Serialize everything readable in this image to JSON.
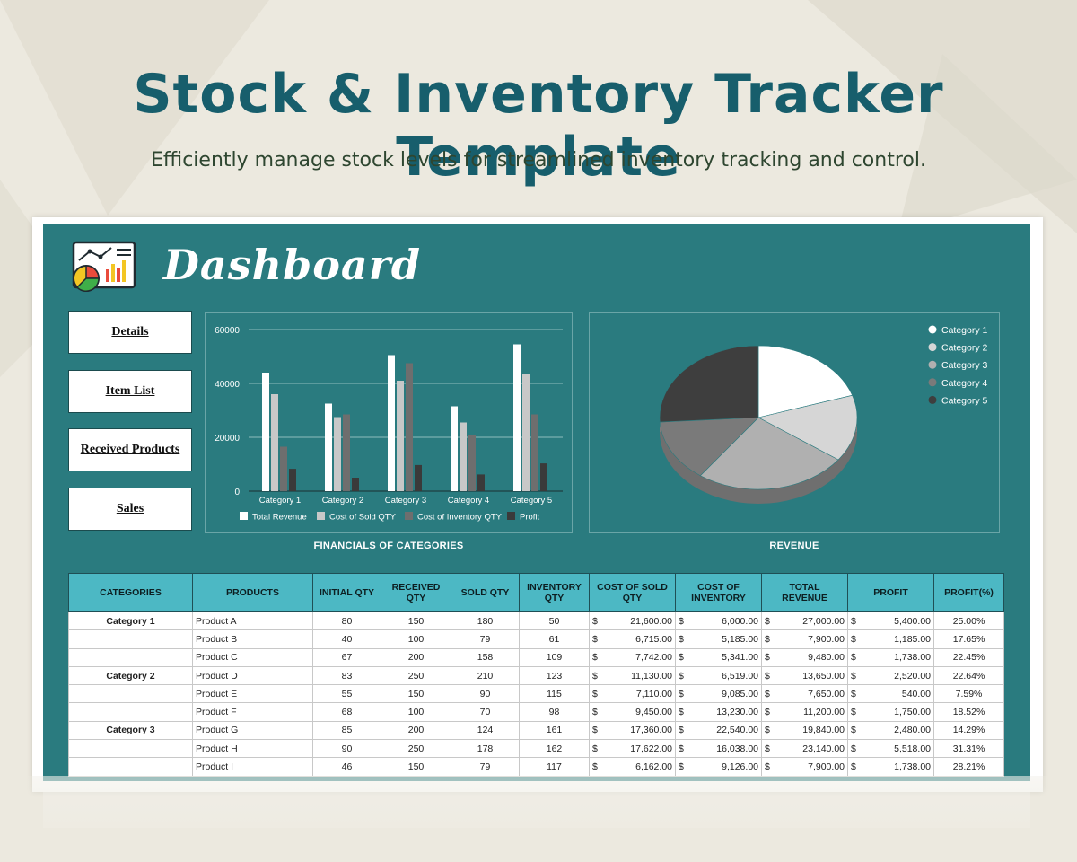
{
  "hero": {
    "title": "Stock & Inventory Tracker Template",
    "subtitle": "Efficiently manage stock levels for streamlined inventory tracking and control."
  },
  "dashboard": {
    "title": "Dashboard",
    "icon": "dashboard-chart-icon",
    "nav": [
      "Details",
      "Item List",
      "Received Products",
      "Sales"
    ]
  },
  "colors": {
    "teal_panel": "#2a7b7f",
    "header_cell": "#4cb8c4",
    "title_teal": "#175e6c"
  },
  "chart_data": [
    {
      "type": "bar",
      "title": "FINANCIALS OF CATEGORIES",
      "categories": [
        "Category 1",
        "Category 2",
        "Category 3",
        "Category 4",
        "Category 5"
      ],
      "series": [
        {
          "name": "Total Revenue",
          "color": "#ffffff",
          "values": [
            44000,
            32500,
            50500,
            31500,
            54500
          ]
        },
        {
          "name": "Cost of Sold QTY",
          "color": "#c8c8c8",
          "values": [
            36000,
            27500,
            41000,
            25500,
            43500
          ]
        },
        {
          "name": "Cost of Inventory QTY",
          "color": "#6e6e6e",
          "values": [
            16500,
            28500,
            47500,
            21000,
            28500
          ]
        },
        {
          "name": "Profit",
          "color": "#3a3a3a",
          "values": [
            8300,
            5000,
            9700,
            6200,
            10300
          ]
        }
      ],
      "ylim": [
        0,
        60000
      ],
      "yticks": [
        "0",
        "20000",
        "40000",
        "60000"
      ],
      "grid": true,
      "legend": "bottom"
    },
    {
      "type": "pie",
      "title": "REVENUE",
      "labels": [
        "Category 1",
        "Category 2",
        "Category 3",
        "Category 4",
        "Category 5"
      ],
      "values": [
        20,
        15,
        25,
        14,
        26
      ],
      "colors": [
        "#ffffff",
        "#d6d6d6",
        "#b0b0b0",
        "#7a7a7a",
        "#3e3e3e"
      ],
      "legend": "right"
    }
  ],
  "table": {
    "headers": [
      "CATEGORIES",
      "PRODUCTS",
      "INITIAL QTY",
      "RECEIVED QTY",
      "SOLD QTY",
      "INVENTORY QTY",
      "COST OF SOLD QTY",
      "COST OF INVENTORY",
      "TOTAL REVENUE",
      "PROFIT",
      "PROFIT(%)"
    ],
    "rows": [
      {
        "category": "Category 1",
        "product": "Product A",
        "initial": "80",
        "received": "150",
        "sold": "180",
        "inventory": "50",
        "cost_sold": "21,600.00",
        "cost_inv": "6,000.00",
        "revenue": "27,000.00",
        "profit": "5,400.00",
        "pct": "25.00%"
      },
      {
        "category": "",
        "product": "Product B",
        "initial": "40",
        "received": "100",
        "sold": "79",
        "inventory": "61",
        "cost_sold": "6,715.00",
        "cost_inv": "5,185.00",
        "revenue": "7,900.00",
        "profit": "1,185.00",
        "pct": "17.65%"
      },
      {
        "category": "",
        "product": "Product C",
        "initial": "67",
        "received": "200",
        "sold": "158",
        "inventory": "109",
        "cost_sold": "7,742.00",
        "cost_inv": "5,341.00",
        "revenue": "9,480.00",
        "profit": "1,738.00",
        "pct": "22.45%"
      },
      {
        "category": "Category 2",
        "product": "Product D",
        "initial": "83",
        "received": "250",
        "sold": "210",
        "inventory": "123",
        "cost_sold": "11,130.00",
        "cost_inv": "6,519.00",
        "revenue": "13,650.00",
        "profit": "2,520.00",
        "pct": "22.64%"
      },
      {
        "category": "",
        "product": "Product E",
        "initial": "55",
        "received": "150",
        "sold": "90",
        "inventory": "115",
        "cost_sold": "7,110.00",
        "cost_inv": "9,085.00",
        "revenue": "7,650.00",
        "profit": "540.00",
        "pct": "7.59%"
      },
      {
        "category": "",
        "product": "Product F",
        "initial": "68",
        "received": "100",
        "sold": "70",
        "inventory": "98",
        "cost_sold": "9,450.00",
        "cost_inv": "13,230.00",
        "revenue": "11,200.00",
        "profit": "1,750.00",
        "pct": "18.52%"
      },
      {
        "category": "Category 3",
        "product": "Product G",
        "initial": "85",
        "received": "200",
        "sold": "124",
        "inventory": "161",
        "cost_sold": "17,360.00",
        "cost_inv": "22,540.00",
        "revenue": "19,840.00",
        "profit": "2,480.00",
        "pct": "14.29%"
      },
      {
        "category": "",
        "product": "Product H",
        "initial": "90",
        "received": "250",
        "sold": "178",
        "inventory": "162",
        "cost_sold": "17,622.00",
        "cost_inv": "16,038.00",
        "revenue": "23,140.00",
        "profit": "5,518.00",
        "pct": "31.31%"
      },
      {
        "category": "",
        "product": "Product I",
        "initial": "46",
        "received": "150",
        "sold": "79",
        "inventory": "117",
        "cost_sold": "6,162.00",
        "cost_inv": "9,126.00",
        "revenue": "7,900.00",
        "profit": "1,738.00",
        "pct": "28.21%"
      }
    ],
    "currency": "$"
  }
}
